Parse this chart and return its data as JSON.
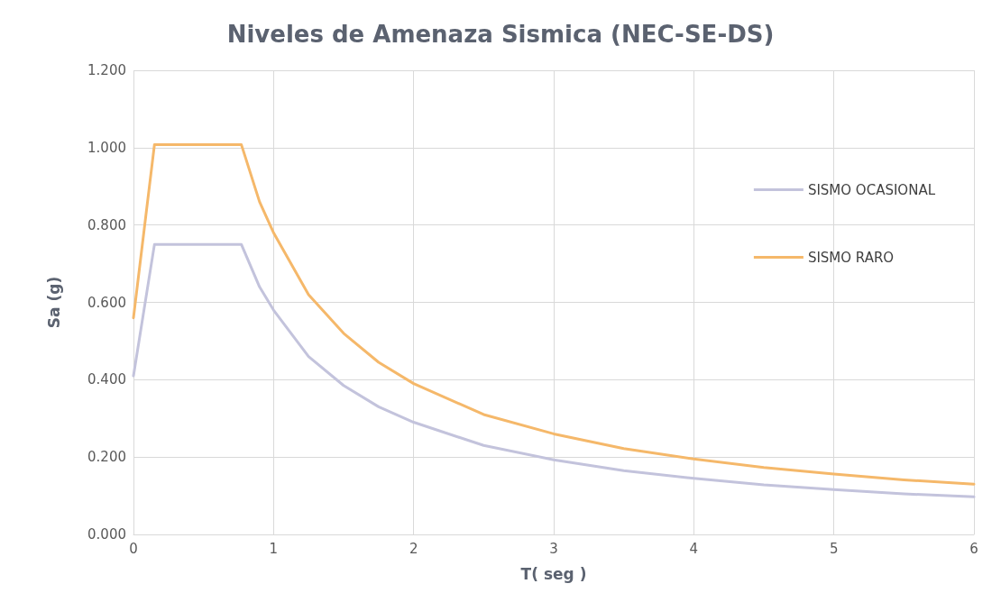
{
  "chart_data": {
    "type": "line",
    "title": "Niveles de Amenaza Sismica (NEC-SE-DS)",
    "xlabel": "T( seg )",
    "ylabel": "Sa (g)",
    "xlim": [
      0,
      6
    ],
    "xticks": [
      0,
      1,
      2,
      3,
      4,
      5,
      6
    ],
    "ylim": [
      0,
      1.2
    ],
    "yticks": [
      {
        "value": 0,
        "label": "0.000"
      },
      {
        "value": 0.2,
        "label": "0.200"
      },
      {
        "value": 0.4,
        "label": "0.400"
      },
      {
        "value": 0.6,
        "label": "0.600"
      },
      {
        "value": 0.8,
        "label": "0.800"
      },
      {
        "value": 1,
        "label": "1.000"
      },
      {
        "value": 1.2,
        "label": "1.200"
      }
    ],
    "grid": true,
    "legend": "right",
    "marker": "none",
    "line_style": "solid",
    "series": [
      {
        "name": "SISMO OCASIONAL",
        "color": "#c3c3dc",
        "x": [
          0,
          0.15,
          0.77,
          0.9,
          1,
          1.25,
          1.5,
          1.75,
          2,
          2.5,
          3,
          3.5,
          4,
          4.5,
          5,
          5.5,
          6
        ],
        "values": [
          0.41,
          0.75,
          0.75,
          0.64,
          0.58,
          0.46,
          0.385,
          0.33,
          0.29,
          0.23,
          0.193,
          0.165,
          0.145,
          0.128,
          0.116,
          0.105,
          0.097
        ]
      },
      {
        "name": "SISMO RARO",
        "color": "#f5b86a",
        "x": [
          0,
          0.15,
          0.77,
          0.9,
          1,
          1.25,
          1.5,
          1.75,
          2,
          2.5,
          3,
          3.5,
          4,
          4.5,
          5,
          5.5,
          6
        ],
        "values": [
          0.56,
          1.008,
          1.008,
          0.86,
          0.78,
          0.62,
          0.52,
          0.445,
          0.39,
          0.31,
          0.26,
          0.222,
          0.195,
          0.173,
          0.156,
          0.141,
          0.13
        ]
      }
    ]
  }
}
